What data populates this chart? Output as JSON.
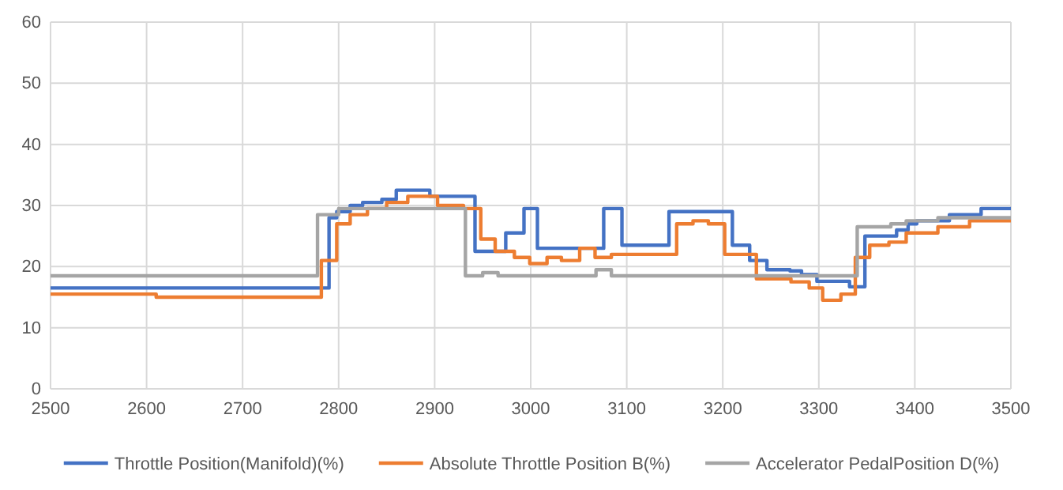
{
  "chart_data": {
    "type": "step",
    "xlim": [
      2500,
      3500
    ],
    "xticks": [
      2500,
      2600,
      2700,
      2800,
      2900,
      3000,
      3100,
      3200,
      3300,
      3400,
      3500
    ],
    "ylim": [
      0,
      60
    ],
    "yticks": [
      0,
      10,
      20,
      30,
      40,
      50,
      60
    ],
    "grid": true,
    "legend": "bottom",
    "series": [
      {
        "name": "Throttle Position(Manifold)(%)",
        "color": "#4472c4",
        "x": [
          2500,
          2790,
          2798,
          2812,
          2825,
          2845,
          2860,
          2895,
          2942,
          2974,
          2993,
          3007,
          3076,
          3095,
          3144,
          3210,
          3228,
          3246,
          3270,
          3282,
          3298,
          3332,
          3348,
          3381,
          3393,
          3402,
          3436,
          3469,
          3500
        ],
        "values": [
          16.5,
          28,
          29,
          30,
          30.5,
          31,
          32.5,
          31.5,
          22.5,
          25.5,
          29.5,
          23,
          29.5,
          23.5,
          29,
          23.5,
          21,
          19.5,
          19.3,
          18.7,
          17.6,
          16.7,
          25,
          26,
          27,
          27.5,
          28.5,
          29.5,
          29.5
        ]
      },
      {
        "name": "Absolute Throttle Position B(%)",
        "color": "#ed7d31",
        "x": [
          2500,
          2610,
          2782,
          2798,
          2812,
          2830,
          2850,
          2872,
          2903,
          2930,
          2948,
          2963,
          2983,
          2999,
          3017,
          3032,
          3051,
          3067,
          3084,
          3152,
          3169,
          3185,
          3202,
          3235,
          3271,
          3290,
          3304,
          3323,
          3338,
          3353,
          3373,
          3391,
          3424,
          3457,
          3500
        ],
        "values": [
          15.5,
          15,
          21,
          27,
          28.5,
          29.5,
          30.5,
          31.5,
          30,
          29.5,
          24.5,
          22.5,
          21.5,
          20.5,
          21.5,
          21,
          23,
          21.5,
          22,
          27,
          27.5,
          27,
          22,
          18,
          17.5,
          16.5,
          14.5,
          15.5,
          21.5,
          23.5,
          24,
          25.5,
          26.5,
          27.5,
          27.5
        ]
      },
      {
        "name": "Accelerator PedalPosition D(%)",
        "color": "#a5a5a5",
        "x": [
          2500,
          2778,
          2800,
          2932,
          2950,
          2966,
          3068,
          3084,
          3340,
          3375,
          3391,
          3424,
          3463,
          3500
        ],
        "values": [
          18.5,
          28.5,
          29.5,
          18.5,
          19,
          18.5,
          19.5,
          18.5,
          26.5,
          27,
          27.5,
          28,
          28,
          28
        ]
      }
    ]
  }
}
